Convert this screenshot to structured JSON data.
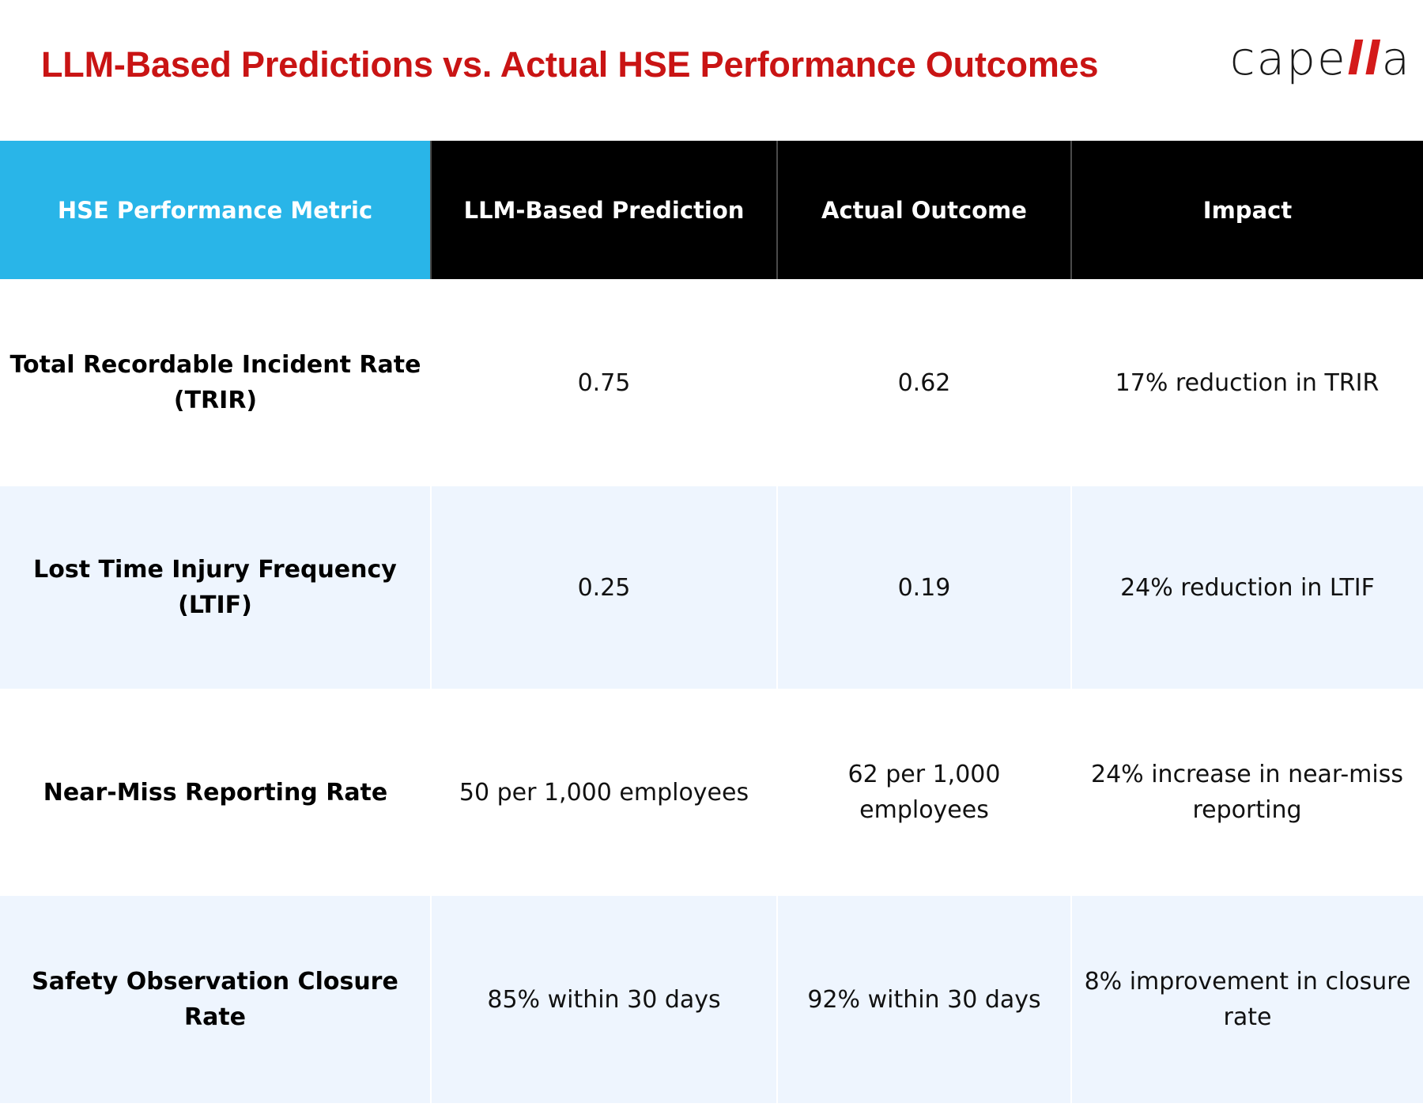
{
  "header": {
    "title": "LLM-Based Predictions vs. Actual HSE Performance Outcomes",
    "logo": {
      "text_main": "cape",
      "text_accent": "ll",
      "text_end": "a",
      "accent_color": "#d41a1a"
    }
  },
  "colors": {
    "title": "#c91414",
    "header_first_column": "#29b5e8",
    "header_other_columns": "#000000",
    "shaded_row": "#eef5fe"
  },
  "table": {
    "columns": [
      "HSE Performance Metric",
      "LLM-Based Prediction",
      "Actual Outcome",
      "Impact"
    ],
    "rows": [
      {
        "metric": "Total Recordable Incident Rate (TRIR)",
        "prediction": "0.75",
        "actual": "0.62",
        "impact": "17% reduction in TRIR"
      },
      {
        "metric": "Lost Time Injury Frequency (LTIF)",
        "prediction": "0.25",
        "actual": "0.19",
        "impact": "24% reduction in LTIF"
      },
      {
        "metric": "Near-Miss Reporting Rate",
        "prediction": "50 per 1,000 employees",
        "actual": "62 per 1,000 employees",
        "impact": "24% increase in near-miss reporting"
      },
      {
        "metric": "Safety Observation Closure Rate",
        "prediction": "85% within 30 days",
        "actual": "92% within 30 days",
        "impact": "8% improvement in closure rate"
      }
    ]
  }
}
